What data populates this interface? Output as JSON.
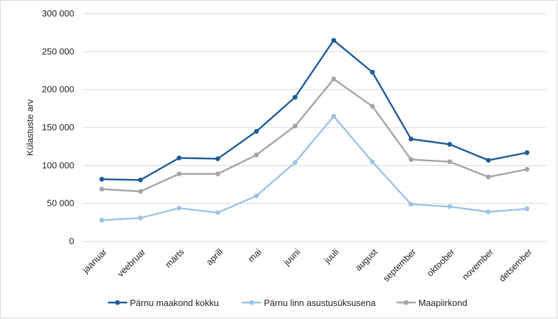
{
  "chart_data": {
    "type": "line",
    "title": "",
    "xlabel": "",
    "ylabel": "Külastuste arv",
    "ylim": [
      0,
      300000
    ],
    "yticks": [
      0,
      50000,
      100000,
      150000,
      200000,
      250000,
      300000
    ],
    "ytick_labels": [
      "0",
      "50 000",
      "100 000",
      "150 000",
      "200 000",
      "250 000",
      "300 000"
    ],
    "grid": "horizontal",
    "legend_position": "bottom",
    "categories": [
      "jaanuar",
      "veebruar",
      "märts",
      "aprill",
      "mai",
      "juuni",
      "juuli",
      "august",
      "september",
      "oktoober",
      "november",
      "detsember"
    ],
    "series": [
      {
        "name": "Pärnu maakond kokku",
        "color": "#1f5c99",
        "values": [
          82000,
          81000,
          110000,
          109000,
          145000,
          190000,
          265000,
          223000,
          135000,
          128000,
          107000,
          117000
        ]
      },
      {
        "name": "Pärnu linn asustusüksusena",
        "color": "#9dc3e6",
        "values": [
          28000,
          31000,
          44000,
          38000,
          60000,
          104000,
          165000,
          105000,
          49000,
          46000,
          39000,
          43000
        ]
      },
      {
        "name": "Maapiirkond",
        "color": "#a5a5a5",
        "values": [
          69000,
          66000,
          89000,
          89000,
          114000,
          152000,
          214000,
          178000,
          108000,
          105000,
          85000,
          95000
        ]
      }
    ]
  }
}
